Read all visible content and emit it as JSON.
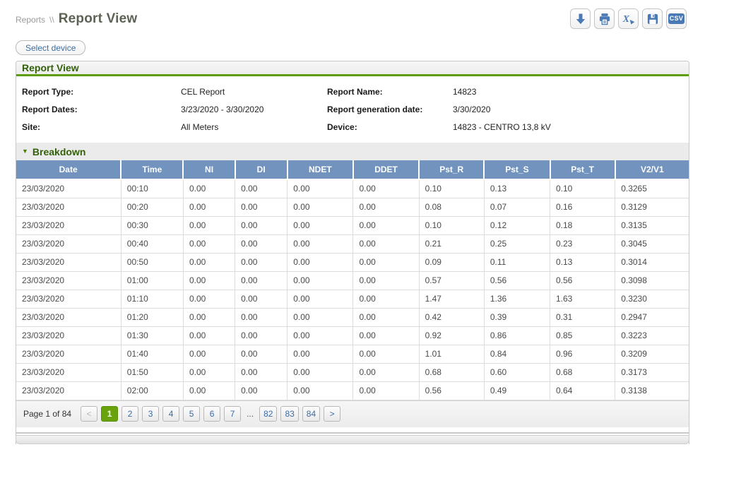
{
  "colors": {
    "accent_green": "#5a9e0c",
    "header_blue": "#7193be",
    "active_page_green": "#68a30b",
    "icon_blue": "#4a7ab5",
    "link_blue": "#3a6ba5"
  },
  "breadcrumb": {
    "section": "Reports",
    "separator": "\\\\",
    "title": "Report View"
  },
  "toolbar": {
    "icons": [
      "download",
      "print",
      "excel-export",
      "save",
      "csv-export"
    ],
    "csv_label": "CSV"
  },
  "select_device": {
    "label": "Select device"
  },
  "panel": {
    "title": "Report View"
  },
  "meta": {
    "left": [
      {
        "label": "Report Type:",
        "value": "CEL Report"
      },
      {
        "label": "Report Dates:",
        "value": "3/23/2020 - 3/30/2020"
      },
      {
        "label": "Site:",
        "value": "All Meters"
      }
    ],
    "right": [
      {
        "label": "Report Name:",
        "value": "14823"
      },
      {
        "label": "Report generation date:",
        "value": "3/30/2020"
      },
      {
        "label": "Device:",
        "value": "14823 - CENTRO 13,8 kV"
      }
    ]
  },
  "breakdown": {
    "title": "Breakdown",
    "collapsed": false
  },
  "table": {
    "columns": [
      "Date",
      "Time",
      "NI",
      "DI",
      "NDET",
      "DDET",
      "Pst_R",
      "Pst_S",
      "Pst_T",
      "V2/V1"
    ],
    "rows": [
      [
        "23/03/2020",
        "00:10",
        "0.00",
        "0.00",
        "0.00",
        "0.00",
        "0.10",
        "0.13",
        "0.10",
        "0.3265"
      ],
      [
        "23/03/2020",
        "00:20",
        "0.00",
        "0.00",
        "0.00",
        "0.00",
        "0.08",
        "0.07",
        "0.16",
        "0.3129"
      ],
      [
        "23/03/2020",
        "00:30",
        "0.00",
        "0.00",
        "0.00",
        "0.00",
        "0.10",
        "0.12",
        "0.18",
        "0.3135"
      ],
      [
        "23/03/2020",
        "00:40",
        "0.00",
        "0.00",
        "0.00",
        "0.00",
        "0.21",
        "0.25",
        "0.23",
        "0.3045"
      ],
      [
        "23/03/2020",
        "00:50",
        "0.00",
        "0.00",
        "0.00",
        "0.00",
        "0.09",
        "0.11",
        "0.13",
        "0.3014"
      ],
      [
        "23/03/2020",
        "01:00",
        "0.00",
        "0.00",
        "0.00",
        "0.00",
        "0.57",
        "0.56",
        "0.56",
        "0.3098"
      ],
      [
        "23/03/2020",
        "01:10",
        "0.00",
        "0.00",
        "0.00",
        "0.00",
        "1.47",
        "1.36",
        "1.63",
        "0.3230"
      ],
      [
        "23/03/2020",
        "01:20",
        "0.00",
        "0.00",
        "0.00",
        "0.00",
        "0.42",
        "0.39",
        "0.31",
        "0.2947"
      ],
      [
        "23/03/2020",
        "01:30",
        "0.00",
        "0.00",
        "0.00",
        "0.00",
        "0.92",
        "0.86",
        "0.85",
        "0.3223"
      ],
      [
        "23/03/2020",
        "01:40",
        "0.00",
        "0.00",
        "0.00",
        "0.00",
        "1.01",
        "0.84",
        "0.96",
        "0.3209"
      ],
      [
        "23/03/2020",
        "01:50",
        "0.00",
        "0.00",
        "0.00",
        "0.00",
        "0.68",
        "0.60",
        "0.68",
        "0.3173"
      ],
      [
        "23/03/2020",
        "02:00",
        "0.00",
        "0.00",
        "0.00",
        "0.00",
        "0.56",
        "0.49",
        "0.64",
        "0.3138"
      ]
    ]
  },
  "pagination": {
    "page_label": "Page 1 of 84",
    "prev_symbol": "<",
    "next_symbol": ">",
    "tokens": [
      "1",
      "2",
      "3",
      "4",
      "5",
      "6",
      "7",
      "...",
      "82",
      "83",
      "84"
    ],
    "active_page": "1"
  }
}
